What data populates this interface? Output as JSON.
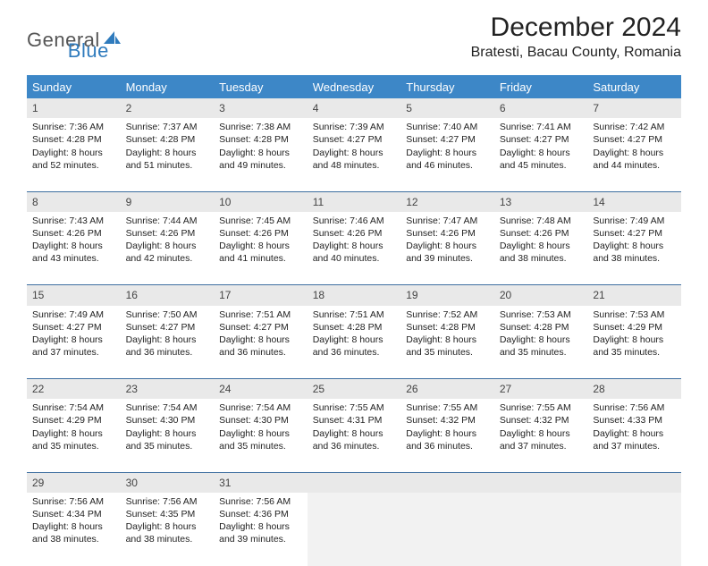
{
  "brand": {
    "part1": "General",
    "part2": "Blue",
    "blue_color": "#2f7bbd",
    "gray_color": "#666"
  },
  "title": "December 2024",
  "location": "Bratesti, Bacau County, Romania",
  "header_bg": "#3d87c7",
  "days_of_week": [
    "Sunday",
    "Monday",
    "Tuesday",
    "Wednesday",
    "Thursday",
    "Friday",
    "Saturday"
  ],
  "weeks": [
    [
      {
        "n": "1",
        "sr": "7:36 AM",
        "ss": "4:28 PM",
        "dl": "8 hours and 52 minutes."
      },
      {
        "n": "2",
        "sr": "7:37 AM",
        "ss": "4:28 PM",
        "dl": "8 hours and 51 minutes."
      },
      {
        "n": "3",
        "sr": "7:38 AM",
        "ss": "4:28 PM",
        "dl": "8 hours and 49 minutes."
      },
      {
        "n": "4",
        "sr": "7:39 AM",
        "ss": "4:27 PM",
        "dl": "8 hours and 48 minutes."
      },
      {
        "n": "5",
        "sr": "7:40 AM",
        "ss": "4:27 PM",
        "dl": "8 hours and 46 minutes."
      },
      {
        "n": "6",
        "sr": "7:41 AM",
        "ss": "4:27 PM",
        "dl": "8 hours and 45 minutes."
      },
      {
        "n": "7",
        "sr": "7:42 AM",
        "ss": "4:27 PM",
        "dl": "8 hours and 44 minutes."
      }
    ],
    [
      {
        "n": "8",
        "sr": "7:43 AM",
        "ss": "4:26 PM",
        "dl": "8 hours and 43 minutes."
      },
      {
        "n": "9",
        "sr": "7:44 AM",
        "ss": "4:26 PM",
        "dl": "8 hours and 42 minutes."
      },
      {
        "n": "10",
        "sr": "7:45 AM",
        "ss": "4:26 PM",
        "dl": "8 hours and 41 minutes."
      },
      {
        "n": "11",
        "sr": "7:46 AM",
        "ss": "4:26 PM",
        "dl": "8 hours and 40 minutes."
      },
      {
        "n": "12",
        "sr": "7:47 AM",
        "ss": "4:26 PM",
        "dl": "8 hours and 39 minutes."
      },
      {
        "n": "13",
        "sr": "7:48 AM",
        "ss": "4:26 PM",
        "dl": "8 hours and 38 minutes."
      },
      {
        "n": "14",
        "sr": "7:49 AM",
        "ss": "4:27 PM",
        "dl": "8 hours and 38 minutes."
      }
    ],
    [
      {
        "n": "15",
        "sr": "7:49 AM",
        "ss": "4:27 PM",
        "dl": "8 hours and 37 minutes."
      },
      {
        "n": "16",
        "sr": "7:50 AM",
        "ss": "4:27 PM",
        "dl": "8 hours and 36 minutes."
      },
      {
        "n": "17",
        "sr": "7:51 AM",
        "ss": "4:27 PM",
        "dl": "8 hours and 36 minutes."
      },
      {
        "n": "18",
        "sr": "7:51 AM",
        "ss": "4:28 PM",
        "dl": "8 hours and 36 minutes."
      },
      {
        "n": "19",
        "sr": "7:52 AM",
        "ss": "4:28 PM",
        "dl": "8 hours and 35 minutes."
      },
      {
        "n": "20",
        "sr": "7:53 AM",
        "ss": "4:28 PM",
        "dl": "8 hours and 35 minutes."
      },
      {
        "n": "21",
        "sr": "7:53 AM",
        "ss": "4:29 PM",
        "dl": "8 hours and 35 minutes."
      }
    ],
    [
      {
        "n": "22",
        "sr": "7:54 AM",
        "ss": "4:29 PM",
        "dl": "8 hours and 35 minutes."
      },
      {
        "n": "23",
        "sr": "7:54 AM",
        "ss": "4:30 PM",
        "dl": "8 hours and 35 minutes."
      },
      {
        "n": "24",
        "sr": "7:54 AM",
        "ss": "4:30 PM",
        "dl": "8 hours and 35 minutes."
      },
      {
        "n": "25",
        "sr": "7:55 AM",
        "ss": "4:31 PM",
        "dl": "8 hours and 36 minutes."
      },
      {
        "n": "26",
        "sr": "7:55 AM",
        "ss": "4:32 PM",
        "dl": "8 hours and 36 minutes."
      },
      {
        "n": "27",
        "sr": "7:55 AM",
        "ss": "4:32 PM",
        "dl": "8 hours and 37 minutes."
      },
      {
        "n": "28",
        "sr": "7:56 AM",
        "ss": "4:33 PM",
        "dl": "8 hours and 37 minutes."
      }
    ],
    [
      {
        "n": "29",
        "sr": "7:56 AM",
        "ss": "4:34 PM",
        "dl": "8 hours and 38 minutes."
      },
      {
        "n": "30",
        "sr": "7:56 AM",
        "ss": "4:35 PM",
        "dl": "8 hours and 38 minutes."
      },
      {
        "n": "31",
        "sr": "7:56 AM",
        "ss": "4:36 PM",
        "dl": "8 hours and 39 minutes."
      },
      null,
      null,
      null,
      null
    ]
  ],
  "labels": {
    "sunrise": "Sunrise:",
    "sunset": "Sunset:",
    "daylight": "Daylight:"
  }
}
